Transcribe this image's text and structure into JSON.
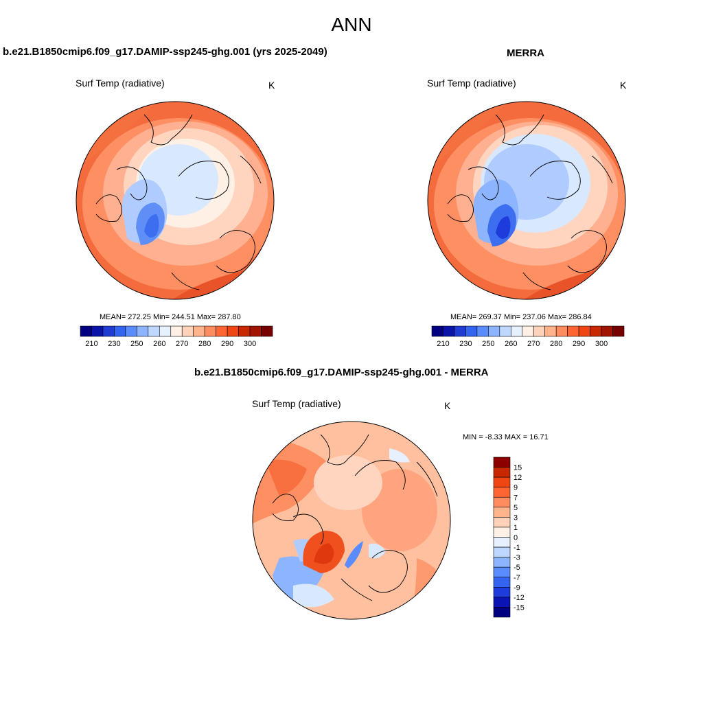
{
  "main_title": "ANN",
  "panels": [
    {
      "title": "b.e21.B1850cmip6.f09_g17.DAMIP-ssp245-ghg.001 (yrs 2025-2049)",
      "variable": "Surf Temp (radiative)",
      "units": "K",
      "stats": "MEAN= 272.25  Min= 244.51  Max= 287.80"
    },
    {
      "title": "MERRA",
      "variable": "Surf Temp (radiative)",
      "units": "K",
      "stats": "MEAN= 269.37  Min= 237.06  Max= 286.84"
    },
    {
      "title": "b.e21.B1850cmip6.f09_g17.DAMIP-ssp245-ghg.001 - MERRA",
      "variable": "Surf Temp (radiative)",
      "units": "K",
      "stats": "MIN =  -8.33 MAX =  16.71"
    }
  ],
  "abs_colorbar": {
    "colors": [
      "#000080",
      "#0a14a8",
      "#1e3cd2",
      "#3264f0",
      "#5a8cff",
      "#8cb4ff",
      "#bed7ff",
      "#e6f0ff",
      "#fff0e6",
      "#ffd2b9",
      "#ffb48c",
      "#ff8c5f",
      "#ff6432",
      "#f04614",
      "#c82800",
      "#a01400",
      "#780000"
    ],
    "labels": [
      "210",
      "230",
      "250",
      "260",
      "270",
      "280",
      "290",
      "300"
    ]
  },
  "diff_colorbar": {
    "colors": [
      "#000080",
      "#0a14b4",
      "#1e3cdc",
      "#3264f0",
      "#5a8cff",
      "#8cb4ff",
      "#bed7ff",
      "#e6f0ff",
      "#fff0e6",
      "#ffd2b9",
      "#ffb48c",
      "#ff8c5f",
      "#ff6432",
      "#f04614",
      "#c82800",
      "#8c0000"
    ],
    "labels": [
      "15",
      "12",
      "9",
      "7",
      "5",
      "3",
      "1",
      "0",
      "-1",
      "-3",
      "-5",
      "-7",
      "-9",
      "-12",
      "-15"
    ]
  }
}
